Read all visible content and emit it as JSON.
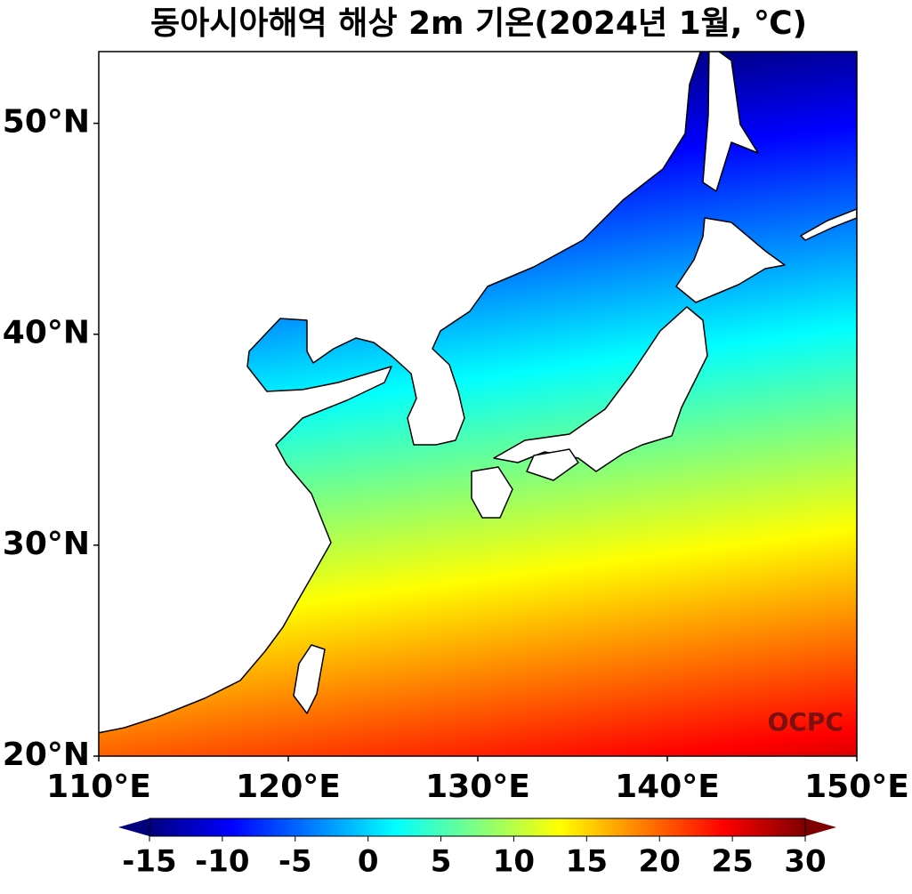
{
  "chart_data": {
    "type": "map",
    "title": "동아시아해역 해상 2m 기온(2024년 1월, ℃)",
    "xlim": [
      110,
      150
    ],
    "ylim": [
      20,
      53.4
    ],
    "xticks": [
      {
        "value": 110,
        "label": "110°E"
      },
      {
        "value": 120,
        "label": "120°E"
      },
      {
        "value": 130,
        "label": "130°E"
      },
      {
        "value": 140,
        "label": "140°E"
      },
      {
        "value": 150,
        "label": "150°E"
      }
    ],
    "yticks": [
      {
        "value": 20,
        "label": "20°N"
      },
      {
        "value": 30,
        "label": "30°N"
      },
      {
        "value": 40,
        "label": "40°N"
      },
      {
        "value": 50,
        "label": "50°N"
      }
    ],
    "colorbar": {
      "lim": [
        -15,
        30
      ],
      "ticks": [
        -15,
        -10,
        -5,
        0,
        5,
        10,
        15,
        20,
        25,
        30
      ],
      "extend": "both"
    },
    "colormap": [
      "#00007f",
      "#0000ff",
      "#007fff",
      "#00ffff",
      "#7fff7f",
      "#ffff00",
      "#ff7f00",
      "#ff0000",
      "#7f0000"
    ],
    "watermark": "OCPC"
  }
}
